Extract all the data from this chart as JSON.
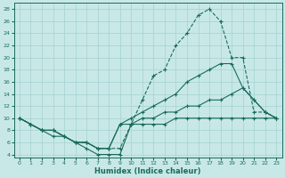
{
  "xlabel": "Humidex (Indice chaleur)",
  "bg_color": "#c8e8e8",
  "grid_color": "#aad4d4",
  "line_color": "#1a6b5a",
  "xlim_min": -0.5,
  "xlim_max": 23.5,
  "ylim_min": 3.5,
  "ylim_max": 29.0,
  "yticks": [
    4,
    6,
    8,
    10,
    12,
    14,
    16,
    18,
    20,
    22,
    24,
    26,
    28
  ],
  "xticks": [
    0,
    1,
    2,
    3,
    4,
    5,
    6,
    7,
    8,
    9,
    10,
    11,
    12,
    13,
    14,
    15,
    16,
    17,
    18,
    19,
    20,
    21,
    22,
    23
  ],
  "series": [
    {
      "x": [
        0,
        1,
        2,
        3,
        4,
        5,
        6,
        7,
        8,
        9,
        10,
        11,
        12,
        13,
        14,
        15,
        16,
        17,
        18,
        19,
        20,
        21,
        22,
        23
      ],
      "y": [
        10,
        9,
        8,
        8,
        7,
        6,
        6,
        5,
        5,
        5,
        9,
        13,
        17,
        18,
        22,
        24,
        27,
        28,
        26,
        20,
        20,
        11,
        11,
        10
      ],
      "linestyle": "--"
    },
    {
      "x": [
        0,
        1,
        2,
        3,
        4,
        5,
        6,
        7,
        8,
        9,
        10,
        11,
        12,
        13,
        14,
        15,
        16,
        17,
        18,
        19,
        20,
        21,
        22,
        23
      ],
      "y": [
        10,
        9,
        8,
        8,
        7,
        6,
        6,
        5,
        5,
        9,
        10,
        11,
        12,
        13,
        14,
        16,
        17,
        18,
        19,
        19,
        15,
        13,
        11,
        10
      ],
      "linestyle": "-"
    },
    {
      "x": [
        0,
        1,
        2,
        3,
        4,
        5,
        6,
        7,
        8,
        9,
        10,
        11,
        12,
        13,
        14,
        15,
        16,
        17,
        18,
        19,
        20,
        21,
        22,
        23
      ],
      "y": [
        10,
        9,
        8,
        8,
        7,
        6,
        6,
        5,
        5,
        9,
        9,
        10,
        10,
        11,
        11,
        12,
        12,
        13,
        13,
        14,
        15,
        13,
        11,
        10
      ],
      "linestyle": "-"
    },
    {
      "x": [
        0,
        1,
        2,
        3,
        4,
        5,
        6,
        7,
        8,
        9,
        10,
        11,
        12,
        13,
        14,
        15,
        16,
        17,
        18,
        19,
        20,
        21,
        22,
        23
      ],
      "y": [
        10,
        9,
        8,
        7,
        7,
        6,
        5,
        4,
        4,
        4,
        9,
        9,
        9,
        9,
        10,
        10,
        10,
        10,
        10,
        10,
        10,
        10,
        10,
        10
      ],
      "linestyle": "-"
    }
  ]
}
